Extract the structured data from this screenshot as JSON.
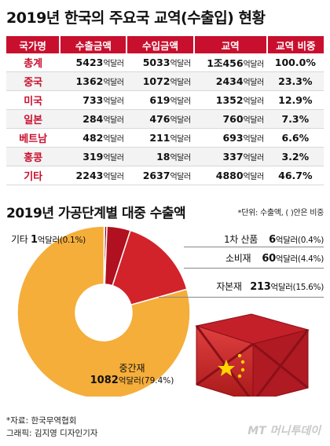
{
  "title": "2019년 한국의 주요국 교역(수출입) 현황",
  "table": {
    "headers": [
      "국가명",
      "수출금액",
      "수입금액",
      "교역",
      "교역 비중"
    ],
    "unit": "억달러",
    "rows": [
      {
        "country": "총계",
        "export": "5423",
        "import": "5033",
        "trade": "1조456",
        "share": "100.0%"
      },
      {
        "country": "중국",
        "export": "1362",
        "import": "1072",
        "trade": "2434",
        "share": "23.3%"
      },
      {
        "country": "미국",
        "export": "733",
        "import": "619",
        "trade": "1352",
        "share": "12.9%"
      },
      {
        "country": "일본",
        "export": "284",
        "import": "476",
        "trade": "760",
        "share": "7.3%"
      },
      {
        "country": "베트남",
        "export": "482",
        "import": "211",
        "trade": "693",
        "share": "6.6%"
      },
      {
        "country": "홍콩",
        "export": "319",
        "import": "18",
        "trade": "337",
        "share": "3.2%"
      },
      {
        "country": "기타",
        "export": "2243",
        "import": "2637",
        "trade": "4880",
        "share": "46.7%"
      }
    ]
  },
  "subtitle": "2019년 가공단계별 대중 수출액",
  "unit_note": "*단위: 수출액, ( )안은 비중",
  "chart_data": {
    "type": "pie",
    "title": "2019년 가공단계별 대중 수출액",
    "unit": "억달러",
    "slices": [
      {
        "name": "기타",
        "value": 1,
        "share": "(0.1%)",
        "color": "#7a7a7a"
      },
      {
        "name": "1차 산품",
        "value": 6,
        "share": "(0.4%)",
        "color": "#8a0f1e"
      },
      {
        "name": "소비재",
        "value": 60,
        "share": "(4.4%)",
        "color": "#b01020"
      },
      {
        "name": "자본재",
        "value": 213,
        "share": "(15.6%)",
        "color": "#d2232a"
      },
      {
        "name": "중간재",
        "value": 1082,
        "share": "(79.4%)",
        "color": "#f5ae3a"
      }
    ]
  },
  "source": "*자료: 한국무역협회",
  "credit": "그래픽: 김지영 디자인기자",
  "logo": "MT 머니투데이"
}
